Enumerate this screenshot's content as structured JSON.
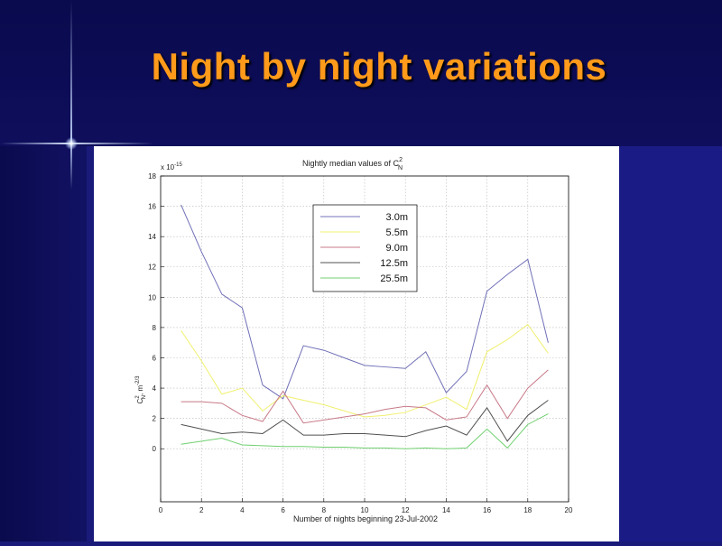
{
  "slide": {
    "title": "Night by night variations",
    "colors": {
      "background": "#1a1a7a",
      "title": "#ff9a1a"
    }
  },
  "chart_data": {
    "type": "line",
    "title": "Nightly median values of C",
    "title_symbol": "2",
    "title_symbol_sub": "N",
    "xlabel": "Number of nights beginning 23-Jul-2002",
    "ylabel_main": "C",
    "ylabel_sup": "2",
    "ylabel_sub": "N",
    "ylabel_units": ", m",
    "ylabel_units_exp": "-2/3",
    "y_scale_note": "x 10",
    "y_scale_exp": "-15",
    "xlim": [
      0,
      20
    ],
    "ylim": [
      -3.5,
      18
    ],
    "x_ticks": [
      0,
      2,
      4,
      6,
      8,
      10,
      12,
      14,
      16,
      18,
      20
    ],
    "y_ticks": [
      0,
      2,
      4,
      6,
      8,
      10,
      12,
      14,
      16,
      18
    ],
    "grid": true,
    "legend_position": "top-center",
    "x": [
      1,
      2,
      3,
      4,
      5,
      6,
      7,
      8,
      9,
      10,
      11,
      12,
      13,
      14,
      15,
      16,
      17,
      18,
      19
    ],
    "series": [
      {
        "name": "3.0m",
        "color": "#7070b8",
        "values": [
          16.1,
          13.0,
          10.2,
          9.3,
          4.2,
          3.3,
          6.8,
          6.5,
          6.0,
          5.5,
          5.4,
          5.3,
          6.4,
          3.7,
          5.1,
          10.4,
          11.5,
          12.5,
          7.0
        ]
      },
      {
        "name": "5.5m",
        "color": "#f0f070",
        "values": [
          7.8,
          5.8,
          3.6,
          4.0,
          2.5,
          3.5,
          3.2,
          2.9,
          2.5,
          2.1,
          2.2,
          2.4,
          2.9,
          3.4,
          2.6,
          6.4,
          7.2,
          8.2,
          6.3
        ]
      },
      {
        "name": "9.0m",
        "color": "#c87a88",
        "values": [
          3.1,
          3.1,
          3.0,
          2.2,
          1.8,
          3.8,
          1.7,
          1.9,
          2.1,
          2.3,
          2.6,
          2.8,
          2.7,
          1.9,
          2.1,
          4.2,
          2.0,
          4.0,
          5.2
        ]
      },
      {
        "name": "12.5m",
        "color": "#505050",
        "values": [
          1.6,
          1.3,
          1.0,
          1.1,
          1.0,
          1.9,
          0.9,
          0.9,
          1.0,
          1.0,
          0.9,
          0.8,
          1.2,
          1.5,
          0.9,
          2.7,
          0.5,
          2.2,
          3.2
        ]
      },
      {
        "name": "25.5m",
        "color": "#70d070",
        "values": [
          0.3,
          0.5,
          0.7,
          0.25,
          0.2,
          0.15,
          0.15,
          0.1,
          0.1,
          0.05,
          0.05,
          0.0,
          0.05,
          0.0,
          0.05,
          1.3,
          0.05,
          1.6,
          2.3
        ]
      }
    ]
  }
}
